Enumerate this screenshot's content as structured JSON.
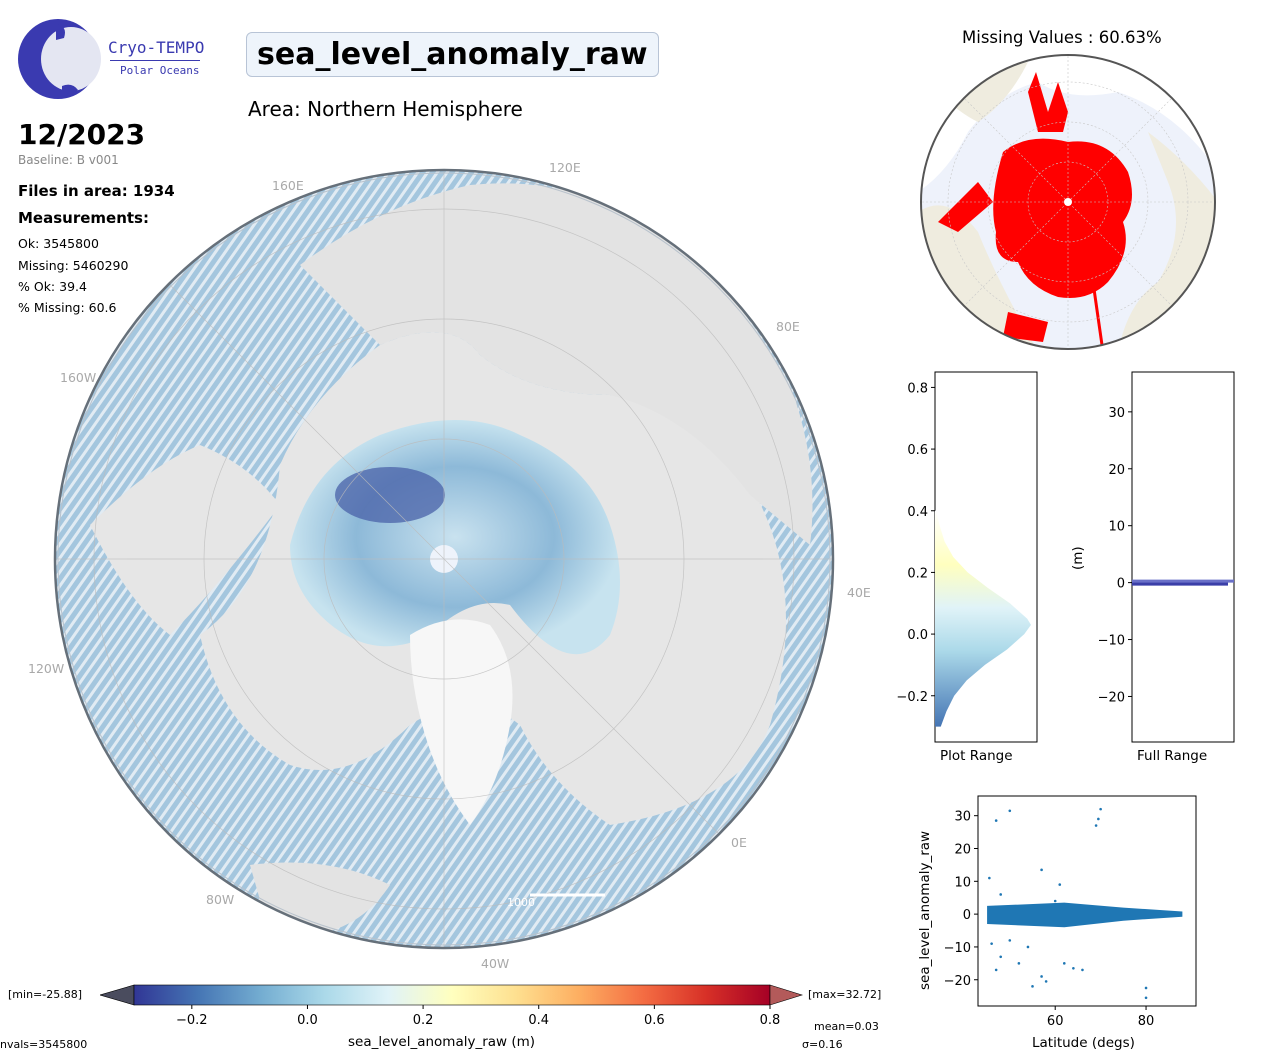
{
  "logo": {
    "name": "Cryo-TEMPO",
    "subtitle": "Polar Oceans"
  },
  "title": "sea_level_anomaly_raw",
  "area": "Area: Northern Hemisphere",
  "date": "12/2023",
  "baseline": "Baseline: B v001",
  "files_in_area": "Files in area: 1934",
  "measurements_heading": "Measurements:",
  "stats": {
    "ok": "Ok: 3545800",
    "missing": "Missing: 5460290",
    "pct_ok": "% Ok: 39.4",
    "pct_missing": "% Missing: 60.6"
  },
  "map_labels": {
    "lon_120e": "120E",
    "lon_80e": "80E",
    "lon_40e": "40E",
    "lon_0e": "0E",
    "lon_40w": "40W",
    "lon_80w": "80W",
    "lon_120w": "120W",
    "lon_160w": "160W",
    "lon_160e": "160E",
    "scale_bar": "1000"
  },
  "missing_map": {
    "title": "Missing Values : 60.63%"
  },
  "colorbar": {
    "min_label": "[min=-25.88]",
    "max_label": "[max=32.72]",
    "ticks": [
      "−0.2",
      "0.0",
      "0.2",
      "0.4",
      "0.6",
      "0.8"
    ],
    "label": "sea_level_anomaly_raw (m)",
    "nvals": "nvals=3545800",
    "mean": "mean=0.03",
    "sigma": "σ=0.16",
    "colors": [
      "#313695",
      "#4575b4",
      "#74add1",
      "#abd9e9",
      "#e0f3f8",
      "#ffffbf",
      "#fee090",
      "#fdae61",
      "#f46d43",
      "#d73027",
      "#a50026"
    ]
  },
  "chart_data": [
    {
      "type": "area",
      "title": "",
      "xlabel": "Plot Range",
      "ylim": [
        -0.35,
        0.85
      ],
      "y_ticks": [
        "−0.2",
        "0.0",
        "0.2",
        "0.4",
        "0.6",
        "0.8"
      ],
      "y": [
        -0.3,
        -0.25,
        -0.2,
        -0.15,
        -0.1,
        -0.05,
        0.0,
        0.03,
        0.05,
        0.1,
        0.15,
        0.2,
        0.25,
        0.3,
        0.35,
        0.4
      ],
      "values": [
        0.06,
        0.12,
        0.2,
        0.33,
        0.52,
        0.75,
        0.93,
        1.0,
        0.96,
        0.78,
        0.55,
        0.34,
        0.19,
        0.1,
        0.05,
        0.01
      ]
    },
    {
      "type": "bar",
      "title": "",
      "xlabel": "Full Range",
      "ylabel": "(m)",
      "ylim": [
        -28,
        37
      ],
      "y_ticks": [
        "30",
        "20",
        "10",
        "0",
        "−10",
        "−20"
      ],
      "bar_value": 0
    },
    {
      "type": "scatter",
      "xlabel": "Latitude (degs)",
      "ylabel": "sea_level_anomaly_raw",
      "xlim": [
        43,
        91
      ],
      "ylim": [
        -28,
        36
      ],
      "x_ticks": [
        "60",
        "80"
      ],
      "y_ticks": [
        "30",
        "20",
        "10",
        "0",
        "−10",
        "−20"
      ],
      "points": [
        [
          47,
          28.5
        ],
        [
          50,
          31.5
        ],
        [
          69,
          27
        ],
        [
          70,
          32
        ],
        [
          69.5,
          29
        ],
        [
          45.5,
          11
        ],
        [
          57,
          13.5
        ],
        [
          60,
          4
        ],
        [
          47,
          -17
        ],
        [
          48,
          -13
        ],
        [
          55,
          -22
        ],
        [
          57,
          -19
        ],
        [
          64,
          -16.5
        ],
        [
          66,
          -17
        ],
        [
          80,
          -22.5
        ],
        [
          80,
          -25.5
        ],
        [
          52,
          -15
        ],
        [
          62,
          -15
        ],
        [
          58,
          -20.5
        ],
        [
          46,
          -9
        ],
        [
          50,
          -8
        ],
        [
          54,
          -10
        ],
        [
          61,
          9
        ],
        [
          48,
          6
        ]
      ]
    }
  ]
}
